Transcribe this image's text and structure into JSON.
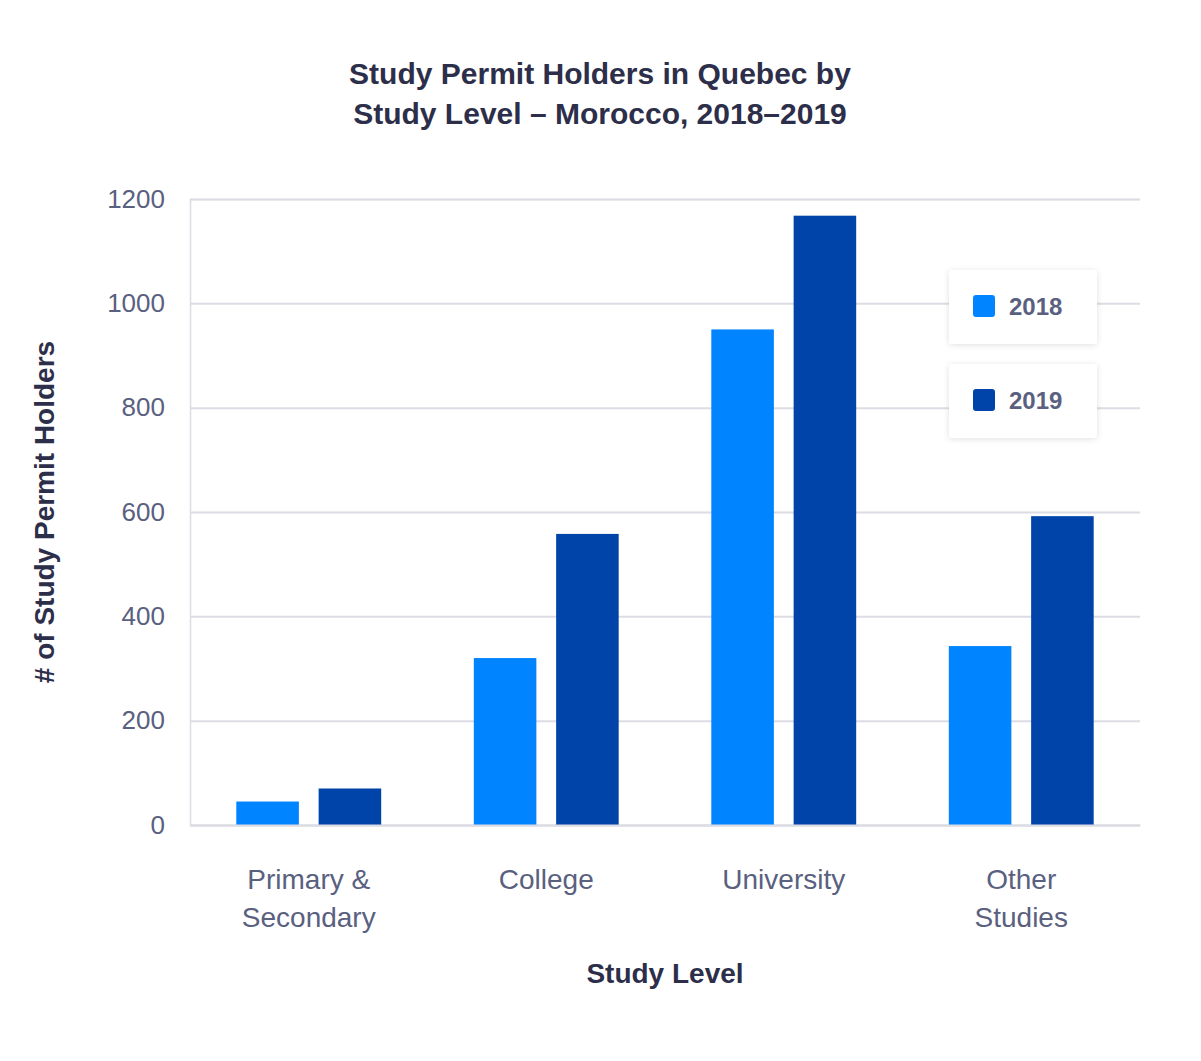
{
  "chart_data": {
    "type": "bar",
    "title": "Study Permit Holders in Quebec by Study Level – Morocco, 2018–2019",
    "x_label": "Study Level",
    "y_label": "# of Study Permit Holders",
    "categories": [
      "Primary & Secondary",
      "College",
      "University",
      "Other Studies"
    ],
    "series": [
      {
        "name": "2018",
        "color": "#0084ff",
        "values": [
          45,
          320,
          950,
          343
        ]
      },
      {
        "name": "2019",
        "color": "#0044aa",
        "values": [
          70,
          558,
          1168,
          592
        ]
      }
    ],
    "ylim": [
      0,
      1200
    ],
    "yticks": [
      0,
      200,
      400,
      600,
      800,
      1000,
      1200
    ],
    "grid": true,
    "legend": "top-right"
  }
}
